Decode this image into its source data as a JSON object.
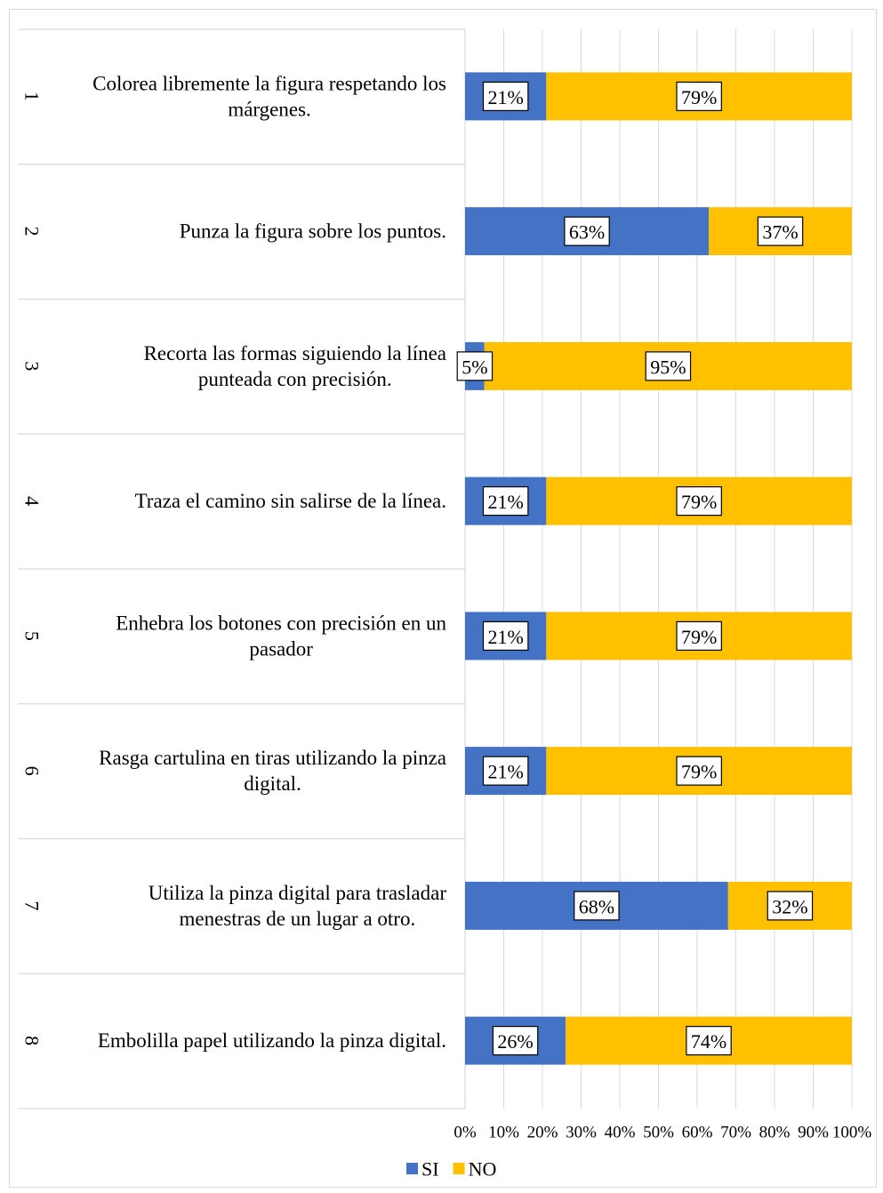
{
  "chart_data": {
    "type": "bar",
    "stacked": true,
    "percent_stacked": true,
    "orientation": "horizontal",
    "categories": [
      {
        "num": "1",
        "text": [
          "Colorea libremente la figura respetando los",
          "márgenes."
        ]
      },
      {
        "num": "2",
        "text": [
          "Punza la figura sobre los puntos."
        ]
      },
      {
        "num": "3",
        "text": [
          "Recorta las formas siguiendo la línea",
          "punteada con precisión."
        ]
      },
      {
        "num": "4",
        "text": [
          "Traza el camino sin salirse de la línea."
        ]
      },
      {
        "num": "5",
        "text": [
          "Enhebra los botones con precisión en un",
          "pasador"
        ]
      },
      {
        "num": "6",
        "text": [
          "Rasga cartulina en tiras utilizando la pinza",
          "digital."
        ]
      },
      {
        "num": "7",
        "text": [
          "Utiliza la pinza digital para trasladar",
          "menestras de un lugar a otro."
        ]
      },
      {
        "num": "8",
        "text": [
          "Embolilla papel utilizando la pinza digital."
        ]
      }
    ],
    "series": [
      {
        "name": "SI",
        "color": "#4472C4",
        "values": [
          21,
          63,
          5,
          21,
          21,
          21,
          68,
          26
        ]
      },
      {
        "name": "NO",
        "color": "#FFC000",
        "values": [
          79,
          37,
          95,
          79,
          79,
          79,
          32,
          74
        ]
      }
    ],
    "data_labels": {
      "SI": [
        "21%",
        "63%",
        "5%",
        "21%",
        "21%",
        "21%",
        "68%",
        "26%"
      ],
      "NO": [
        "79%",
        "37%",
        "95%",
        "79%",
        "79%",
        "79%",
        "32%",
        "74%"
      ]
    },
    "xticks": [
      "0%",
      "10%",
      "20%",
      "30%",
      "40%",
      "50%",
      "60%",
      "70%",
      "80%",
      "90%",
      "100%"
    ],
    "xlim": [
      0,
      100
    ],
    "grid": true,
    "legend": {
      "position": "bottom",
      "entries": [
        "SI",
        "NO"
      ]
    }
  }
}
